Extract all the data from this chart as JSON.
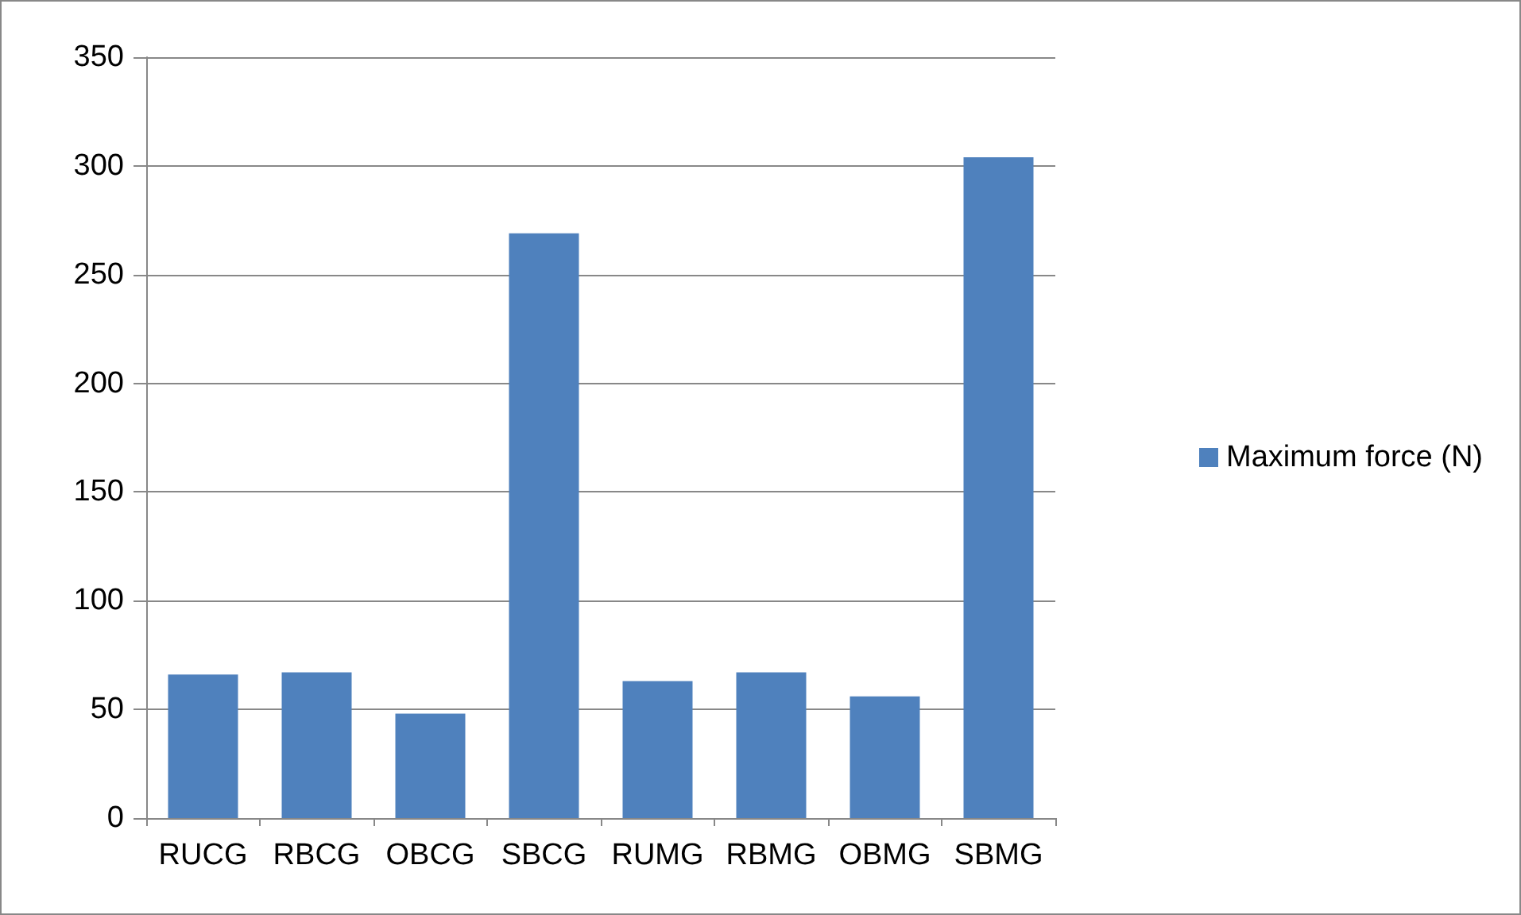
{
  "chart_data": {
    "type": "bar",
    "categories": [
      "RUCG",
      "RBCG",
      "OBCG",
      "SBCG",
      "RUMG",
      "RBMG",
      "OBMG",
      "SBMG"
    ],
    "series": [
      {
        "name": "Maximum force (N)",
        "color": "#4f81bd",
        "values": [
          66,
          67,
          48,
          269,
          63,
          67,
          56,
          304
        ]
      }
    ],
    "ylim": [
      0,
      350
    ],
    "yticks": [
      0,
      50,
      100,
      150,
      200,
      250,
      300,
      350
    ],
    "grid": "y",
    "legend": "right"
  }
}
